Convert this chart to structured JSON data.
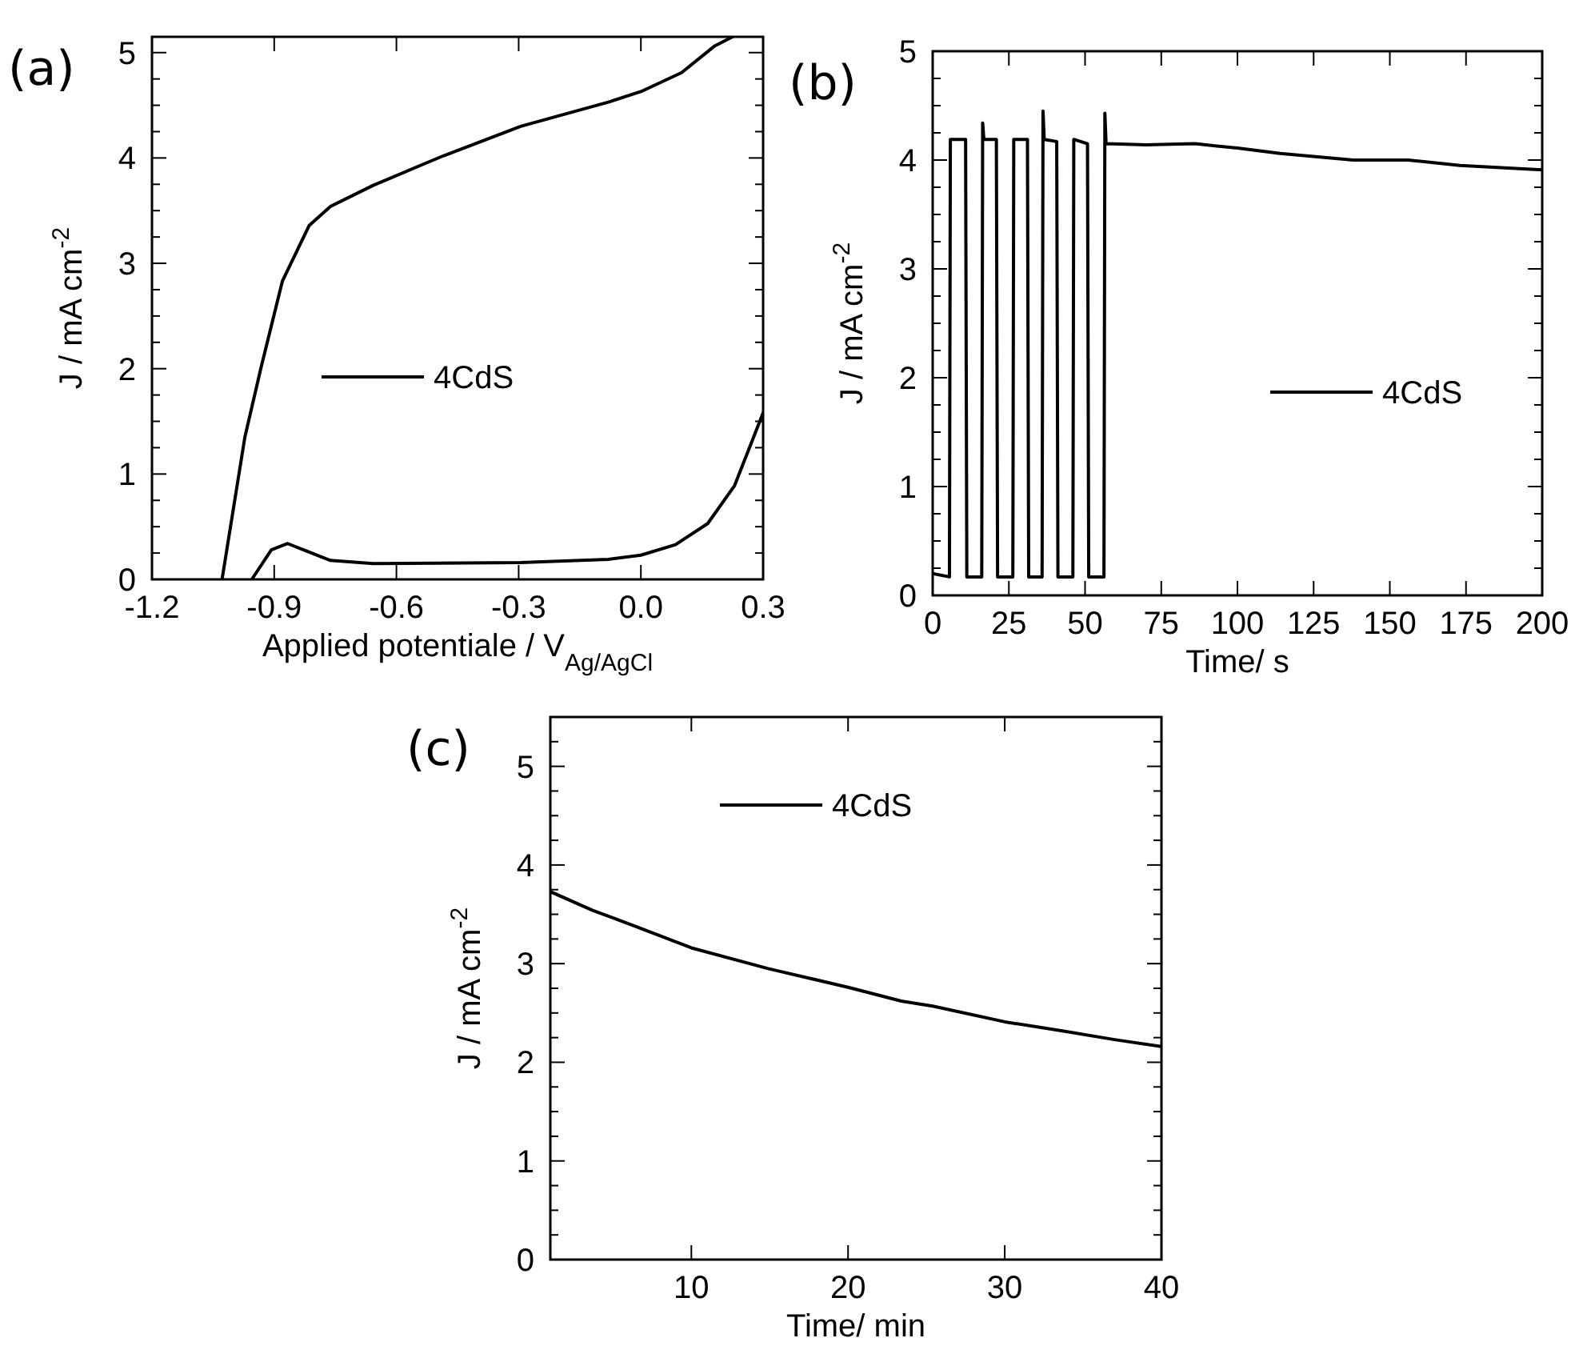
{
  "chart_data": [
    {
      "type": "line",
      "title": "(a)",
      "xlabel": "Applied potentiale / V$_{Ag/AgCl}$",
      "ylabel": "J / mA cm$^{-2}$",
      "xlim": [
        -1.2,
        0.3
      ],
      "ylim": [
        0,
        5.15
      ],
      "xticks": [
        -1.2,
        -0.9,
        -0.6,
        -0.3,
        {
          "value": 0,
          "label": "0.0"
        },
        0.3
      ],
      "yticks": [
        0,
        {
          "value": 0.25,
          "label": null
        },
        {
          "value": 0.5,
          "label": null
        },
        {
          "value": 0.75,
          "label": null
        },
        1,
        {
          "value": 1.25,
          "label": null
        },
        {
          "value": 1.5,
          "label": null
        },
        {
          "value": 1.75,
          "label": null
        },
        2,
        {
          "value": 2.25,
          "label": null
        },
        {
          "value": 2.5,
          "label": null
        },
        {
          "value": 2.75,
          "label": null
        },
        3,
        {
          "value": 3.25,
          "label": null
        },
        {
          "value": 3.5,
          "label": null
        },
        {
          "value": 3.75,
          "label": null
        },
        4,
        {
          "value": 4.25,
          "label": null
        },
        {
          "value": 4.5,
          "label": null
        },
        {
          "value": 4.75,
          "label": null
        },
        5
      ],
      "legend": "center",
      "line_style": "solid",
      "marker": "none",
      "series": [
        {
          "name": "4CdS",
          "color": "#000000",
          "x": [
            -0.955,
            -0.907,
            -0.867,
            -0.828,
            -0.762,
            -0.657,
            -0.295,
            -0.08,
            0.0,
            0.085,
            0.164,
            0.23,
            0.3,
            null,
            -1.028,
            -0.972,
            -0.933,
            -0.88,
            -0.814,
            -0.762,
            -0.657,
            -0.485,
            -0.295,
            -0.08,
            0.0,
            0.1,
            0.18,
            0.225
          ],
          "values": [
            0,
            0.28,
            0.34,
            0.28,
            0.18,
            0.15,
            0.16,
            0.19,
            0.23,
            0.33,
            0.53,
            0.89,
            1.58,
            null,
            0,
            1.35,
            2.0,
            2.83,
            3.36,
            3.54,
            3.74,
            4.02,
            4.3,
            4.53,
            4.63,
            4.81,
            5.06,
            5.15
          ]
        }
      ]
    },
    {
      "type": "line",
      "title": "(b)",
      "xlabel": "Time/ s",
      "ylabel": "J / mA cm$^{-2}$",
      "xlim": [
        0,
        200
      ],
      "ylim": [
        0,
        5
      ],
      "xticks": [
        0,
        25,
        50,
        75,
        100,
        125,
        150,
        175,
        200
      ],
      "yticks": [
        0,
        {
          "value": 0.25,
          "label": null
        },
        {
          "value": 0.5,
          "label": null
        },
        {
          "value": 0.75,
          "label": null
        },
        1,
        {
          "value": 1.25,
          "label": null
        },
        {
          "value": 1.5,
          "label": null
        },
        {
          "value": 1.75,
          "label": null
        },
        2,
        {
          "value": 2.25,
          "label": null
        },
        {
          "value": 2.5,
          "label": null
        },
        {
          "value": 2.75,
          "label": null
        },
        3,
        {
          "value": 3.25,
          "label": null
        },
        {
          "value": 3.5,
          "label": null
        },
        {
          "value": 3.75,
          "label": null
        },
        4,
        {
          "value": 4.25,
          "label": null
        },
        {
          "value": 4.5,
          "label": null
        },
        {
          "value": 4.75,
          "label": null
        },
        5
      ],
      "legend": "center right",
      "line_style": "solid",
      "marker": "none",
      "series": [
        {
          "name": "4CdS",
          "color": "#000000",
          "x": [
            0,
            5.5,
            5.8,
            10.8,
            11.2,
            16.1,
            16.4,
            16.8,
            20.9,
            21.3,
            26.3,
            26.6,
            31.1,
            31.5,
            35.9,
            36.2,
            36.6,
            40.7,
            41.1,
            46.0,
            46.3,
            50.8,
            51.2,
            56.2,
            56.5,
            56.9,
            70,
            86,
            100,
            114,
            138,
            156,
            173,
            200
          ],
          "values": [
            0.2,
            0.17,
            4.19,
            4.19,
            0.17,
            0.17,
            4.34,
            4.19,
            4.19,
            0.17,
            0.17,
            4.19,
            4.19,
            0.17,
            0.17,
            4.45,
            4.19,
            4.17,
            0.17,
            0.17,
            4.19,
            4.15,
            0.17,
            0.17,
            4.43,
            4.15,
            4.14,
            4.15,
            4.11,
            4.06,
            4.0,
            4.0,
            3.95,
            3.91
          ]
        }
      ]
    },
    {
      "type": "line",
      "title": "(c)",
      "xlabel": "Time/ min",
      "ylabel": "J / mA cm$^{-2}$",
      "xlim": [
        1,
        40
      ],
      "ylim": [
        0,
        5.5
      ],
      "xticks": [
        10,
        20,
        30,
        40
      ],
      "yticks": [
        0,
        {
          "value": 0.25,
          "label": null
        },
        {
          "value": 0.5,
          "label": null
        },
        {
          "value": 0.75,
          "label": null
        },
        1,
        {
          "value": 1.25,
          "label": null
        },
        {
          "value": 1.5,
          "label": null
        },
        {
          "value": 1.75,
          "label": null
        },
        2,
        {
          "value": 2.25,
          "label": null
        },
        {
          "value": 2.5,
          "label": null
        },
        {
          "value": 2.75,
          "label": null
        },
        3,
        {
          "value": 3.25,
          "label": null
        },
        {
          "value": 3.5,
          "label": null
        },
        {
          "value": 3.75,
          "label": null
        },
        4,
        {
          "value": 4.25,
          "label": null
        },
        {
          "value": 4.5,
          "label": null
        },
        {
          "value": 4.75,
          "label": null
        },
        5,
        {
          "value": 5.25,
          "label": null
        }
      ],
      "legend": "top",
      "line_style": "solid",
      "marker": "none",
      "series": [
        {
          "name": "4CdS",
          "color": "#000000",
          "x": [
            1,
            3.7,
            6.4,
            10,
            14.9,
            20,
            23.4,
            25.4,
            30,
            33.6,
            37,
            40
          ],
          "values": [
            3.73,
            3.54,
            3.38,
            3.16,
            2.95,
            2.76,
            2.62,
            2.57,
            2.41,
            2.32,
            2.23,
            2.16
          ]
        }
      ]
    }
  ]
}
